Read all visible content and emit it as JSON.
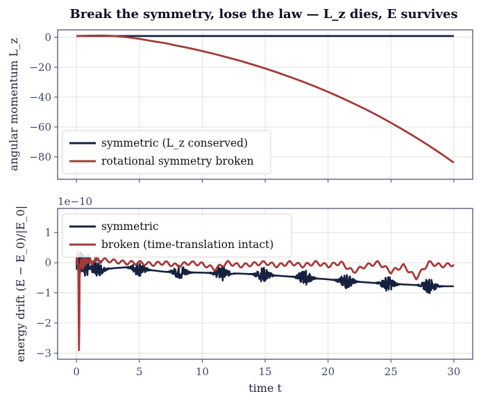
{
  "title": "Break the symmetry, lose the law — L_z dies, E survives",
  "colors": {
    "symmetric": "#16213f",
    "broken": "#a23b3b",
    "grid": "#e2e0dc",
    "frame": "#3d4763",
    "tick_text": "#3f4760"
  },
  "chart_data": [
    {
      "type": "line",
      "ylabel": "angular momentum  L_z",
      "xlabel": "",
      "xlim": [
        -1.5,
        31.5
      ],
      "ylim": [
        -95,
        5
      ],
      "xticks": [
        0,
        5,
        10,
        15,
        20,
        25,
        30
      ],
      "yticks": [
        0,
        -20,
        -40,
        -60,
        -80
      ],
      "grid": true,
      "legend_position": "lower-left",
      "series": [
        {
          "name": "symmetric  (L_z conserved)",
          "color": "#16213f",
          "x": [
            0,
            30
          ],
          "y": [
            0.9,
            0.9
          ]
        },
        {
          "name": "rotational symmetry broken",
          "color": "#a23b3b",
          "x": [
            0,
            1,
            2,
            3,
            4,
            5,
            6,
            7,
            8,
            9,
            10,
            11,
            12,
            13,
            14,
            15,
            16,
            17,
            18,
            19,
            20,
            21,
            22,
            23,
            24,
            25,
            26,
            27,
            28,
            29,
            30
          ],
          "y": [
            0.9,
            1.1,
            1.2,
            0.9,
            0.1,
            -1.0,
            -2.5,
            -3.8,
            -5.6,
            -7.3,
            -9.2,
            -11.2,
            -13.4,
            -15.7,
            -18.2,
            -20.8,
            -23.6,
            -26.6,
            -29.7,
            -33.0,
            -36.5,
            -40.2,
            -44.1,
            -48.2,
            -52.6,
            -57.2,
            -62.0,
            -67.1,
            -72.4,
            -78.0,
            -83.9
          ]
        }
      ]
    },
    {
      "type": "line",
      "ylabel": "energy drift  (E − E_0)/|E_0|",
      "xlabel": "time  t",
      "offset_label": "1e−10",
      "xlim": [
        -1.5,
        31.5
      ],
      "ylim": [
        -3.2,
        1.8
      ],
      "xticks": [
        0,
        5,
        10,
        15,
        20,
        25,
        30
      ],
      "yticks": [
        1,
        0,
        -1,
        -2,
        -3
      ],
      "grid": true,
      "legend_position": "upper-left",
      "series": [
        {
          "name": "symmetric",
          "color": "#16213f",
          "x": [
            0,
            1,
            2,
            3,
            4,
            5,
            6,
            7,
            8,
            9,
            10,
            11,
            12,
            13,
            14,
            15,
            16,
            17,
            18,
            19,
            20,
            21,
            22,
            23,
            24,
            25,
            26,
            27,
            28,
            29,
            30
          ],
          "y": [
            0,
            -0.15,
            -0.22,
            -0.18,
            -0.15,
            -0.2,
            -0.25,
            -0.3,
            -0.3,
            -0.32,
            -0.33,
            -0.34,
            -0.35,
            -0.36,
            -0.38,
            -0.4,
            -0.43,
            -0.46,
            -0.48,
            -0.52,
            -0.55,
            -0.6,
            -0.62,
            -0.65,
            -0.68,
            -0.7,
            -0.72,
            -0.74,
            -0.76,
            -0.78,
            -0.78
          ]
        },
        {
          "name": "broken (time-translation intact)",
          "color": "#a23b3b",
          "x": [
            0,
            1,
            2,
            3,
            4,
            5,
            6,
            7,
            8,
            9,
            10,
            11,
            12,
            13,
            14,
            15,
            16,
            17,
            18,
            19,
            20,
            21,
            22,
            23,
            24,
            25,
            26,
            27,
            28,
            29,
            30
          ],
          "y": [
            0,
            0.05,
            0.1,
            0.05,
            0.0,
            0.0,
            -0.05,
            0.0,
            -0.1,
            0.0,
            -0.05,
            -0.2,
            0.0,
            -0.1,
            -0.05,
            0.0,
            -0.1,
            0.0,
            -0.1,
            0.0,
            -0.1,
            0.0,
            -0.3,
            -0.1,
            0.0,
            -0.3,
            -0.1,
            -0.5,
            0.0,
            -0.1,
            -0.05
          ]
        }
      ]
    }
  ]
}
